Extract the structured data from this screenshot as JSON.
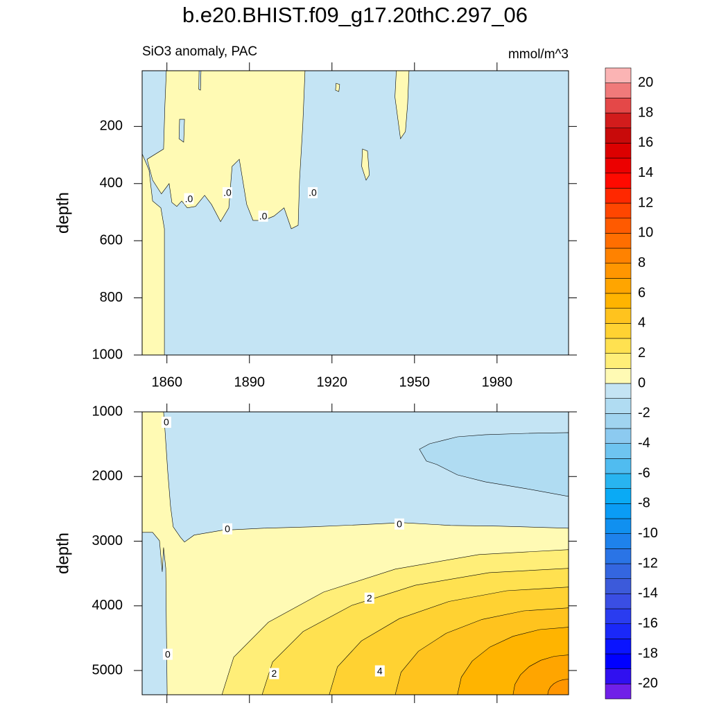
{
  "chart_data": {
    "type": "contour",
    "title": "b.e20.BHIST.f09_g17.20thC.297_06",
    "subtitle": "SiO3 anomaly, PAC",
    "units": "mmol/m^3",
    "colorbar": {
      "levels": [
        -21,
        -20,
        -19,
        -18,
        -17,
        -16,
        -15,
        -14,
        -13,
        -12,
        -11,
        -10,
        -9,
        -8,
        -7,
        -6,
        -5,
        -4,
        -3,
        -2,
        -1,
        0,
        1,
        2,
        3,
        4,
        5,
        6,
        7,
        8,
        9,
        10,
        11,
        12,
        13,
        14,
        15,
        16,
        17,
        18,
        19,
        20,
        21
      ],
      "colors": [
        "#7020e8",
        "#3010f0",
        "#0000ff",
        "#0a14ff",
        "#1a28f8",
        "#2a3cf0",
        "#3a4ee4",
        "#3c5ada",
        "#3466e0",
        "#2a74e6",
        "#1e82ec",
        "#1090f0",
        "#0a9cf5",
        "#0aaaf5",
        "#28b4f0",
        "#50bcf0",
        "#6ec4f0",
        "#8ccaf0",
        "#a0d4f0",
        "#b0dcf2",
        "#c4e4f4",
        "#fffab4",
        "#ffee78",
        "#ffe150",
        "#ffd232",
        "#ffc31e",
        "#ffb400",
        "#ffa500",
        "#ff9600",
        "#ff8200",
        "#ff6e00",
        "#ff5a00",
        "#ff4600",
        "#ff2800",
        "#ff0a00",
        "#ec0000",
        "#dc0000",
        "#c80a0a",
        "#d21c1c",
        "#e44848",
        "#f07a7a",
        "#fbb4b4"
      ],
      "ticks": [
        -20,
        -18,
        -16,
        -14,
        -12,
        -10,
        -8,
        -6,
        -4,
        -2,
        0,
        2,
        4,
        6,
        8,
        10,
        12,
        14,
        16,
        18,
        20
      ]
    },
    "panels": [
      {
        "ylabel": "depth",
        "xlim": [
          1851,
          2006
        ],
        "ylim": [
          5,
          1000
        ],
        "y_reversed": true,
        "xticks": [
          1860,
          1890,
          1920,
          1950,
          1980
        ],
        "xtick_labels_shown": true,
        "yticks": [
          200,
          400,
          600,
          800,
          1000
        ],
        "background_level": -1,
        "contours": [
          {
            "level": 0,
            "points": [
              [
                1859.8,
                5
              ],
              [
                1910.2,
                5
              ],
              [
                1909.4,
                194
              ],
              [
                1908.2,
                388
              ],
              [
                1907.7,
                546
              ],
              [
                1905.2,
                558
              ],
              [
                1902.6,
                485
              ],
              [
                1898.9,
                514
              ],
              [
                1895.1,
                529
              ],
              [
                1891.3,
                529
              ],
              [
                1889,
                473
              ],
              [
                1886.3,
                315
              ],
              [
                1883.7,
                340
              ],
              [
                1882.5,
                485
              ],
              [
                1879.5,
                533
              ],
              [
                1876.2,
                473
              ],
              [
                1873.7,
                441
              ],
              [
                1870.4,
                480
              ],
              [
                1867.4,
                485
              ],
              [
                1865.4,
                461
              ],
              [
                1863.6,
                480
              ],
              [
                1861.8,
                466
              ],
              [
                1860.8,
                400
              ],
              [
                1858,
                436
              ],
              [
                1854.8,
                388
              ],
              [
                1852.8,
                315
              ],
              [
                1858.8,
                279
              ],
              [
                1859.3,
                121
              ]
            ]
          },
          {
            "level": 0,
            "points": [
              [
                1851,
                296
              ],
              [
                1853.5,
                352
              ],
              [
                1854.8,
                461
              ],
              [
                1857.8,
                485
              ],
              [
                1859.1,
                558
              ],
              [
                1859.1,
                1000
              ],
              [
                1851,
                1000
              ]
            ]
          },
          {
            "level": -1,
            "points": [
              [
                1864.6,
                175
              ],
              [
                1866.4,
                175
              ],
              [
                1866.1,
                255
              ],
              [
                1864.4,
                243
              ]
            ]
          },
          {
            "level": -1,
            "points": [
              [
                1871.7,
                5
              ],
              [
                1872.4,
                5
              ],
              [
                1872.2,
                73
              ],
              [
                1871.6,
                70
              ]
            ]
          },
          {
            "level": 0,
            "points": [
              [
                1943.4,
                5
              ],
              [
                1948,
                5
              ],
              [
                1947.5,
                121
              ],
              [
                1946.7,
                218
              ],
              [
                1944.9,
                243
              ],
              [
                1943.9,
                170
              ],
              [
                1942.9,
                97
              ]
            ]
          },
          {
            "level": 0,
            "points": [
              [
                1931.1,
                279
              ],
              [
                1932.9,
                286
              ],
              [
                1933.6,
                370
              ],
              [
                1932.4,
                388
              ],
              [
                1930.8,
                340
              ]
            ]
          },
          {
            "level": 0,
            "points": [
              [
                1921.5,
                49
              ],
              [
                1922.8,
                53
              ],
              [
                1922.5,
                78
              ],
              [
                1921.3,
                73
              ]
            ]
          }
        ],
        "labels": [
          {
            "value": 0,
            "label": ".0",
            "x": 1868,
            "y": 453
          },
          {
            "value": 0,
            "label": ".0",
            "x": 1882,
            "y": 432
          },
          {
            "value": 0,
            "label": ".0",
            "x": 1895,
            "y": 514
          },
          {
            "value": 0,
            "label": ".0",
            "x": 1913,
            "y": 432
          }
        ]
      },
      {
        "ylabel": "depth",
        "xlim": [
          1851,
          2006
        ],
        "ylim": [
          1000,
          5375
        ],
        "y_reversed": true,
        "xticks": [
          1860,
          1890,
          1920,
          1950,
          1980
        ],
        "xtick_labels_shown": false,
        "yticks": [
          1000,
          2000,
          3000,
          4000,
          5000
        ],
        "background_level": -1,
        "contours": [
          {
            "level": -2,
            "points": [
              [
                1951.8,
                1578
              ],
              [
                1955.5,
                1493
              ],
              [
                1960.6,
                1439
              ],
              [
                1965.6,
                1386
              ],
              [
                1975.7,
                1353
              ],
              [
                1990.8,
                1332
              ],
              [
                2006,
                1321
              ],
              [
                2006,
                2307
              ],
              [
                1990.8,
                2189
              ],
              [
                1975.7,
                2082
              ],
              [
                1965.6,
                1975
              ],
              [
                1958.1,
                1814
              ],
              [
                1954.3,
                1760
              ]
            ]
          },
          {
            "level": 0,
            "points": [
              [
                1851,
                1000
              ],
              [
                1858.8,
                1000
              ],
              [
                1859.3,
                1278
              ],
              [
                1860.3,
                1921
              ],
              [
                1861.3,
                2457
              ],
              [
                1862.3,
                2778
              ],
              [
                1864.9,
                2939
              ],
              [
                1866.4,
                3013
              ],
              [
                1869.9,
                2906
              ],
              [
                1880,
                2831
              ],
              [
                1895.1,
                2799
              ],
              [
                1912.7,
                2778
              ],
              [
                1930.3,
                2746
              ],
              [
                1945.5,
                2714
              ],
              [
                1963.1,
                2756
              ],
              [
                1980.7,
                2767
              ],
              [
                2006,
                2799
              ],
              [
                2006,
                5375
              ],
              [
                1860.1,
                5375
              ],
              [
                1859.8,
                4277
              ],
              [
                1859.6,
                3420
              ],
              [
                1858.8,
                3099
              ],
              [
                1858.3,
                3474
              ],
              [
                1857.3,
                2992
              ],
              [
                1854.8,
                2864
              ],
              [
                1851,
                2864
              ]
            ]
          },
          {
            "level": 1,
            "points": [
              [
                1880,
                5375
              ],
              [
                1884.3,
                4794
              ],
              [
                1896.9,
                4253
              ],
              [
                1916.9,
                3788
              ],
              [
                1943,
                3432
              ],
              [
                1973.4,
                3207
              ],
              [
                2006,
                3131
              ],
              [
                2006,
                5375
              ]
            ]
          },
          {
            "level": 2,
            "points": [
              [
                1894.6,
                5375
              ],
              [
                1898.4,
                4869
              ],
              [
                1909.5,
                4398
              ],
              [
                1927.2,
                3993
              ],
              [
                1950.3,
                3682
              ],
              [
                1977.1,
                3487
              ],
              [
                2006,
                3420
              ],
              [
                2006,
                5375
              ]
            ]
          },
          {
            "level": 3,
            "points": [
              [
                1919,
                5375
              ],
              [
                1922,
                4944
              ],
              [
                1930.7,
                4543
              ],
              [
                1944.5,
                4198
              ],
              [
                1962.5,
                3933
              ],
              [
                1983.5,
                3767
              ],
              [
                2006,
                3710
              ],
              [
                2006,
                5375
              ]
            ]
          },
          {
            "level": 4,
            "points": [
              [
                1943,
                5375
              ],
              [
                1945.1,
                5027
              ],
              [
                1951.4,
                4703
              ],
              [
                1961.5,
                4425
              ],
              [
                1974.5,
                4211
              ],
              [
                1989.7,
                4077
              ],
              [
                2006,
                4031
              ],
              [
                2006,
                5375
              ]
            ]
          },
          {
            "level": 5,
            "points": [
              [
                1965.6,
                5375
              ],
              [
                1967,
                5105
              ],
              [
                1971,
                4853
              ],
              [
                1977.4,
                4637
              ],
              [
                1985.8,
                4471
              ],
              [
                1995.5,
                4367
              ],
              [
                2006,
                4331
              ],
              [
                2006,
                5375
              ]
            ]
          },
          {
            "level": 6,
            "points": [
              [
                1985.8,
                5375
              ],
              [
                1986.5,
                5215
              ],
              [
                1988.5,
                5067
              ],
              [
                1991.7,
                4939
              ],
              [
                1995.9,
                4842
              ],
              [
                2000.8,
                4780
              ],
              [
                2006,
                4759
              ],
              [
                2006,
                5375
              ]
            ]
          },
          {
            "level": 7,
            "points": [
              [
                1998.4,
                5375
              ],
              [
                1998.7,
                5313
              ],
              [
                1999.4,
                5255
              ],
              [
                2000.6,
                5205
              ],
              [
                2002.2,
                5166
              ],
              [
                2004,
                5142
              ],
              [
                2006,
                5134
              ],
              [
                2006,
                5375
              ]
            ]
          }
        ],
        "labels": [
          {
            "value": 0,
            "x": 1859.8,
            "y": 1161
          },
          {
            "value": 0,
            "x": 1882,
            "y": 2810
          },
          {
            "value": 0,
            "x": 1944.5,
            "y": 2735
          },
          {
            "value": 2,
            "x": 1933.6,
            "y": 3881
          },
          {
            "value": 0,
            "x": 1860.3,
            "y": 4749
          },
          {
            "value": 2,
            "x": 1899,
            "y": 5048
          },
          {
            "value": 4,
            "x": 1937.4,
            "y": 5006
          }
        ]
      }
    ]
  }
}
